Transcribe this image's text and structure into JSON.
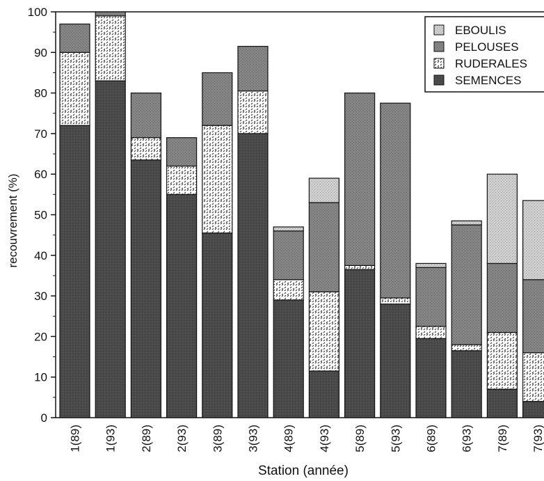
{
  "chart_data": {
    "type": "bar",
    "stacked": true,
    "xlabel": "Station (année)",
    "ylabel": "recouvrement (%)",
    "ylim": [
      0,
      100
    ],
    "yticks": [
      0,
      10,
      20,
      30,
      40,
      50,
      60,
      70,
      80,
      90,
      100
    ],
    "categories": [
      "1(89)",
      "1(93)",
      "2(89)",
      "2(93)",
      "3(89)",
      "3(93)",
      "4(89)",
      "4(93)",
      "5(89)",
      "5(93)",
      "6(89)",
      "6(93)",
      "7(89)",
      "7(93)"
    ],
    "series": [
      {
        "name": "SEMENCES",
        "color": "#4a4a4a",
        "values": [
          72,
          83,
          63.5,
          55,
          45.5,
          70,
          29,
          11.5,
          36.5,
          28,
          19.5,
          16.5,
          7,
          4
        ]
      },
      {
        "name": "RUDERALES",
        "color": "#f4f4f4",
        "values": [
          18,
          16,
          5.5,
          7,
          26.5,
          10.5,
          5,
          19.5,
          1,
          1.5,
          3,
          1.5,
          14,
          12
        ]
      },
      {
        "name": "PELOUSES",
        "color": "#7c7c7c",
        "values": [
          7,
          1,
          11,
          7,
          13,
          11,
          12,
          22,
          42.5,
          48,
          14.5,
          29.5,
          17,
          18
        ]
      },
      {
        "name": "EBOULIS",
        "color": "#c6c6c6",
        "values": [
          0,
          0,
          0,
          0,
          0,
          0,
          1,
          6,
          0,
          0,
          1,
          1,
          22,
          19.5
        ]
      }
    ],
    "legend_order": [
      "EBOULIS",
      "PELOUSES",
      "RUDERALES",
      "SEMENCES"
    ],
    "legend_position": "top-right",
    "grid": false
  }
}
